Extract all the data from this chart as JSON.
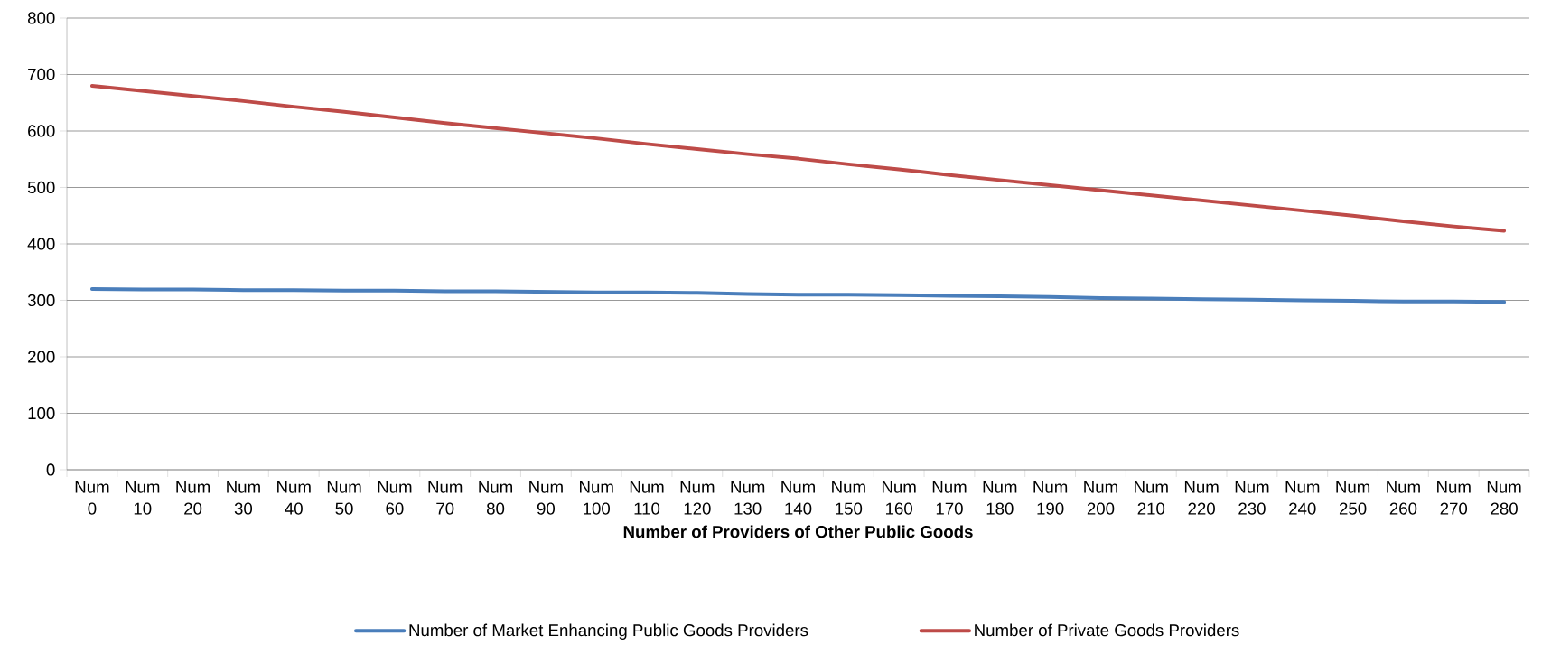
{
  "chart_data": {
    "type": "line",
    "xlabel": "Number of Providers of Other Public Goods",
    "categories": [
      "Num 0",
      "Num 10",
      "Num 20",
      "Num 30",
      "Num 40",
      "Num 50",
      "Num 60",
      "Num 70",
      "Num 80",
      "Num 90",
      "Num 100",
      "Num 110",
      "Num 120",
      "Num 130",
      "Num 140",
      "Num 150",
      "Num 160",
      "Num 170",
      "Num 180",
      "Num 190",
      "Num 200",
      "Num 210",
      "Num 220",
      "Num 230",
      "Num 240",
      "Num 250",
      "Num 260",
      "Num 270",
      "Num 280"
    ],
    "series": [
      {
        "name": "Number of Market Enhancing Public Goods Providers",
        "color": "#4a7ebb",
        "values": [
          320,
          319,
          319,
          318,
          318,
          317,
          317,
          316,
          316,
          315,
          314,
          314,
          313,
          311,
          310,
          310,
          309,
          308,
          307,
          306,
          304,
          303,
          302,
          301,
          300,
          299,
          298,
          298,
          297
        ]
      },
      {
        "name": "Number of Private Goods Providers",
        "color": "#be4b48",
        "values": [
          680,
          671,
          662,
          653,
          643,
          634,
          624,
          614,
          605,
          596,
          587,
          577,
          568,
          559,
          551,
          541,
          532,
          522,
          513,
          504,
          495,
          486,
          477,
          468,
          459,
          450,
          440,
          431,
          423
        ]
      }
    ],
    "ylim": [
      0,
      800
    ],
    "yticks": [
      0,
      100,
      200,
      300,
      400,
      500,
      600,
      700,
      800
    ],
    "grid": "y",
    "legend": "bottom",
    "marker": "none",
    "line_style": "solid"
  }
}
